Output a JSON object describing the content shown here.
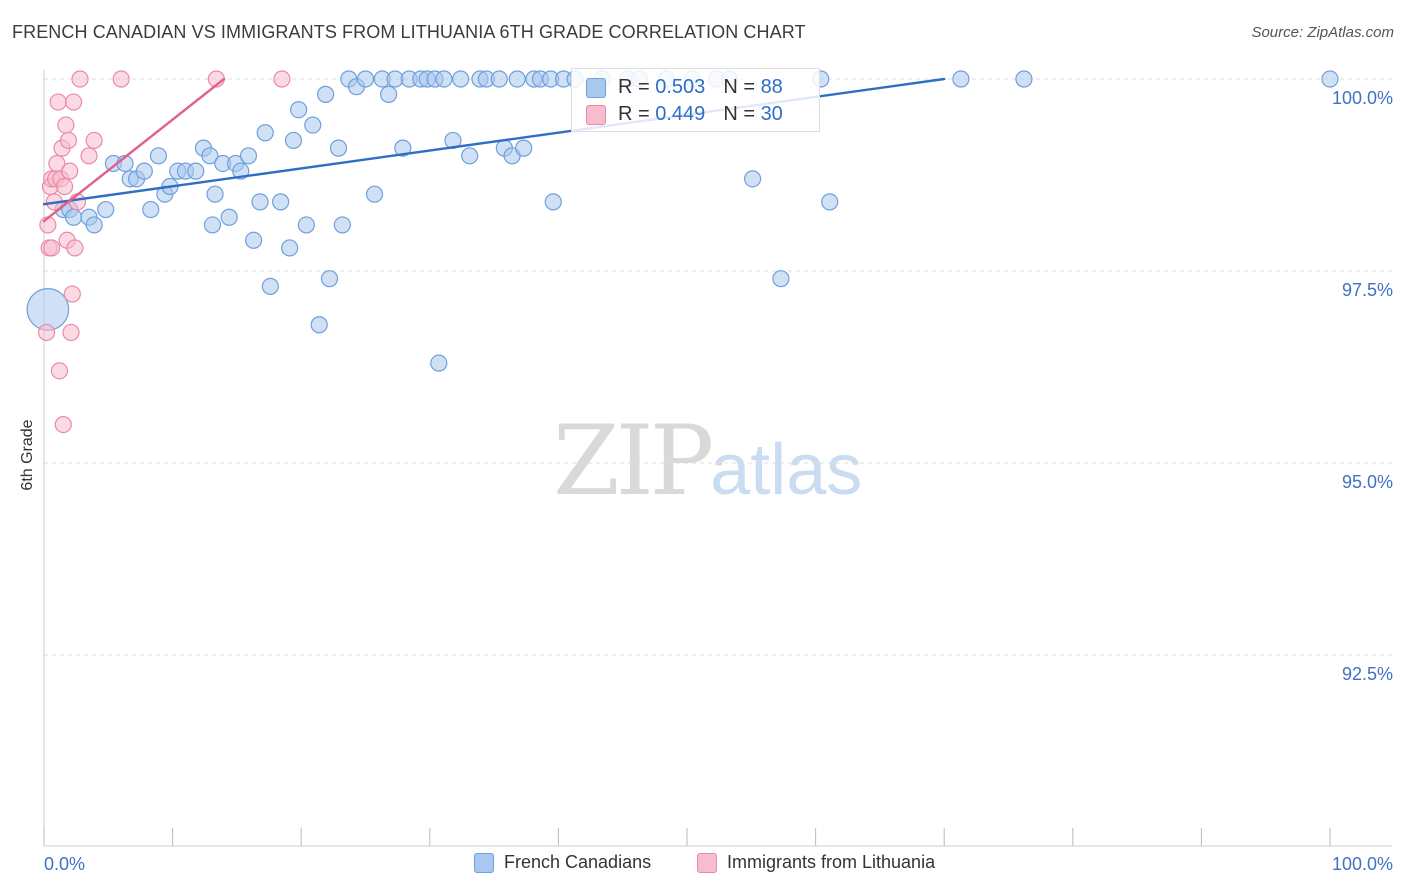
{
  "header": {
    "title": "FRENCH CANADIAN VS IMMIGRANTS FROM LITHUANIA 6TH GRADE CORRELATION CHART",
    "source": "Source: ZipAtlas.com"
  },
  "watermark": {
    "zip": "ZIP",
    "atlas": "atlas"
  },
  "stats": {
    "blue": {
      "r_label": "R =",
      "r_value": "0.503",
      "n_label": "N =",
      "n_value": "88"
    },
    "pink": {
      "r_label": "R =",
      "r_value": "0.449",
      "n_label": "N =",
      "n_value": "30"
    }
  },
  "legend": {
    "blue_label": "French Canadians",
    "pink_label": "Immigrants from Lithuania"
  },
  "colors": {
    "blue_fill": "#a9c8ef",
    "blue_stroke": "#6f9fdc",
    "blue_line": "#2f6ec7",
    "pink_fill": "#f7bccd",
    "pink_stroke": "#ea8aa8",
    "pink_line": "#e0608a",
    "axis_text": "#3f72c4",
    "grid": "#dddddd"
  },
  "chart_data": {
    "type": "scatter",
    "title": "FRENCH CANADIAN VS IMMIGRANTS FROM LITHUANIA 6TH GRADE CORRELATION CHART",
    "xlabel": "",
    "ylabel": "6th Grade",
    "xlim": [
      0,
      100
    ],
    "ylim": [
      90.0,
      100.2
    ],
    "x_tick_labels": [
      "0.0%",
      "100.0%"
    ],
    "y_ticks": [
      {
        "value": 100.0,
        "label": "100.0%"
      },
      {
        "value": 97.5,
        "label": "97.5%"
      },
      {
        "value": 95.0,
        "label": "95.0%"
      },
      {
        "value": 92.5,
        "label": "92.5%"
      }
    ],
    "series": [
      {
        "name": "French Canadians",
        "color": "#6f9fdc",
        "r": 0.503,
        "n": 88,
        "trend": {
          "x": [
            0,
            70
          ],
          "y": [
            98.37,
            100.0
          ]
        },
        "points": [
          [
            0.3,
            97.0,
            2.6
          ],
          [
            1.5,
            98.3,
            1
          ],
          [
            2.0,
            98.3,
            1
          ],
          [
            2.3,
            98.2,
            1
          ],
          [
            3.5,
            98.2,
            1
          ],
          [
            3.9,
            98.1,
            1
          ],
          [
            4.8,
            98.3,
            1
          ],
          [
            5.4,
            98.9,
            1
          ],
          [
            6.3,
            98.9,
            1
          ],
          [
            6.7,
            98.7,
            1
          ],
          [
            7.2,
            98.7,
            1
          ],
          [
            7.8,
            98.8,
            1
          ],
          [
            8.3,
            98.3,
            1
          ],
          [
            8.9,
            99.0,
            1
          ],
          [
            9.4,
            98.5,
            1
          ],
          [
            9.8,
            98.6,
            1
          ],
          [
            10.4,
            98.8,
            1
          ],
          [
            11.0,
            98.8,
            1
          ],
          [
            11.8,
            98.8,
            1
          ],
          [
            12.4,
            99.1,
            1
          ],
          [
            12.9,
            99.0,
            1
          ],
          [
            13.1,
            98.1,
            1
          ],
          [
            13.3,
            98.5,
            1
          ],
          [
            13.9,
            98.9,
            1
          ],
          [
            14.4,
            98.2,
            1
          ],
          [
            14.9,
            98.9,
            1
          ],
          [
            15.3,
            98.8,
            1
          ],
          [
            15.9,
            99.0,
            1
          ],
          [
            16.3,
            97.9,
            1
          ],
          [
            16.8,
            98.4,
            1
          ],
          [
            17.2,
            99.3,
            1
          ],
          [
            17.6,
            97.3,
            1
          ],
          [
            18.4,
            98.4,
            1
          ],
          [
            19.1,
            97.8,
            1
          ],
          [
            19.4,
            99.2,
            1
          ],
          [
            19.8,
            99.6,
            1
          ],
          [
            20.4,
            98.1,
            1
          ],
          [
            20.9,
            99.4,
            1
          ],
          [
            21.4,
            96.8,
            1
          ],
          [
            21.9,
            99.8,
            1
          ],
          [
            22.2,
            97.4,
            1
          ],
          [
            22.9,
            99.1,
            1
          ],
          [
            23.2,
            98.1,
            1
          ],
          [
            23.7,
            100.0,
            1
          ],
          [
            24.3,
            99.9,
            1
          ],
          [
            25.0,
            100.0,
            1
          ],
          [
            25.7,
            98.5,
            1
          ],
          [
            26.3,
            100.0,
            1
          ],
          [
            26.8,
            99.8,
            1
          ],
          [
            27.3,
            100.0,
            1
          ],
          [
            27.9,
            99.1,
            1
          ],
          [
            28.4,
            100.0,
            1
          ],
          [
            29.3,
            100.0,
            1
          ],
          [
            29.8,
            100.0,
            1
          ],
          [
            30.4,
            100.0,
            1
          ],
          [
            30.7,
            96.3,
            1
          ],
          [
            31.1,
            100.0,
            1
          ],
          [
            31.8,
            99.2,
            1
          ],
          [
            32.4,
            100.0,
            1
          ],
          [
            33.1,
            99.0,
            1
          ],
          [
            33.9,
            100.0,
            1
          ],
          [
            34.4,
            100.0,
            1
          ],
          [
            35.4,
            100.0,
            1
          ],
          [
            35.8,
            99.1,
            1
          ],
          [
            36.4,
            99.0,
            1
          ],
          [
            36.8,
            100.0,
            1
          ],
          [
            37.3,
            99.1,
            1
          ],
          [
            38.1,
            100.0,
            1
          ],
          [
            38.6,
            100.0,
            1
          ],
          [
            39.4,
            100.0,
            1
          ],
          [
            39.6,
            98.4,
            1
          ],
          [
            40.4,
            100.0,
            1
          ],
          [
            41.3,
            100.0,
            1
          ],
          [
            43.4,
            100.0,
            1
          ],
          [
            45.4,
            100.0,
            1
          ],
          [
            46.3,
            100.0,
            1
          ],
          [
            48.4,
            100.0,
            1
          ],
          [
            50.4,
            100.0,
            1
          ],
          [
            52.3,
            100.0,
            1
          ],
          [
            53.3,
            100.0,
            1
          ],
          [
            55.1,
            98.7,
            1
          ],
          [
            57.3,
            97.4,
            1
          ],
          [
            60.4,
            100.0,
            1
          ],
          [
            61.1,
            98.4,
            1
          ],
          [
            71.3,
            100.0,
            1
          ],
          [
            76.2,
            100.0,
            1
          ],
          [
            100.0,
            100.0,
            1
          ]
        ]
      },
      {
        "name": "Immigrants from Lithuania",
        "color": "#ea8aa8",
        "r": 0.449,
        "n": 30,
        "trend": {
          "x": [
            0,
            14
          ],
          "y": [
            98.15,
            100.0
          ]
        },
        "points": [
          [
            0.2,
            96.7,
            1
          ],
          [
            0.3,
            98.1,
            1
          ],
          [
            0.4,
            97.8,
            1
          ],
          [
            0.5,
            98.6,
            1
          ],
          [
            0.6,
            97.8,
            1
          ],
          [
            0.6,
            98.7,
            1
          ],
          [
            0.8,
            98.4,
            1
          ],
          [
            0.9,
            98.7,
            1
          ],
          [
            1.0,
            98.9,
            1
          ],
          [
            1.1,
            99.7,
            1
          ],
          [
            1.2,
            96.2,
            1
          ],
          [
            1.3,
            98.7,
            1
          ],
          [
            1.4,
            99.1,
            1
          ],
          [
            1.5,
            95.5,
            1
          ],
          [
            1.6,
            98.6,
            1
          ],
          [
            1.7,
            99.4,
            1
          ],
          [
            1.8,
            97.9,
            1
          ],
          [
            1.9,
            99.2,
            1
          ],
          [
            2.0,
            98.8,
            1
          ],
          [
            2.1,
            96.7,
            1
          ],
          [
            2.2,
            97.2,
            1
          ],
          [
            2.3,
            99.7,
            1
          ],
          [
            2.4,
            97.8,
            1
          ],
          [
            2.6,
            98.4,
            1
          ],
          [
            2.8,
            100.0,
            1
          ],
          [
            3.5,
            99.0,
            1
          ],
          [
            3.9,
            99.2,
            1
          ],
          [
            6.0,
            100.0,
            1
          ],
          [
            13.4,
            100.0,
            1
          ],
          [
            18.5,
            100.0,
            1
          ]
        ]
      }
    ],
    "legend_position": "bottom-center"
  }
}
